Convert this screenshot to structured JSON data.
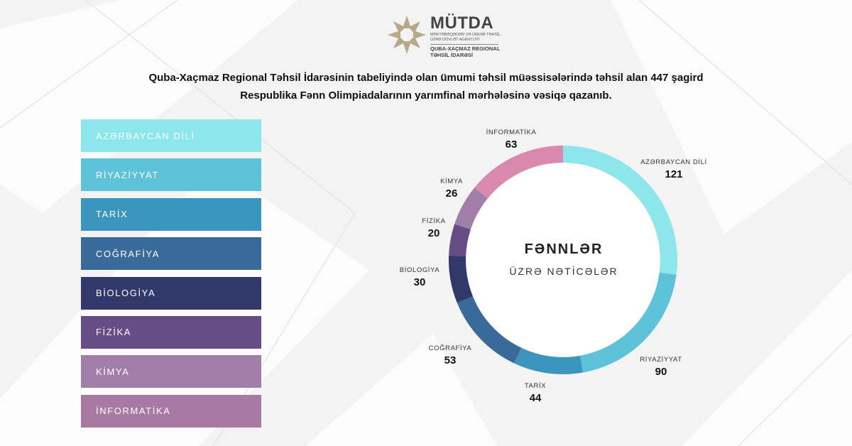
{
  "logo": {
    "name": "MÜTDA",
    "subtitle": "MƏKTƏBƏQƏDƏR VƏ ÜMUMİ TƏHSİL ÜZRƏ DÖVLƏT AGENTLİYİ",
    "region": "QUBA-XAÇMAZ REGIONAL TƏHSİL İDARƏSİ"
  },
  "headline": {
    "line1": "Quba-Xaçmaz Regional Təhsil İdarəsinin tabeliyində olan ümumi təhsil müəssisələrində təhsil alan 447 şagird",
    "line2": "Respublika Fənn Olimpiadalarının yarımfinal mərhələsinə vəsiqə qazanıb."
  },
  "center": {
    "title": "FƏNNLƏR",
    "subtitle": "ÜZRƏ NƏTİCƏLƏR"
  },
  "legend": [
    {
      "label": "AZƏRBAYCAN DİLİ",
      "color": "#8ce6ec"
    },
    {
      "label": "RİYAZİYYAT",
      "color": "#5ec3d9"
    },
    {
      "label": "TARİX",
      "color": "#3b95bd"
    },
    {
      "label": "COĞRAFİYA",
      "color": "#3a6a9a"
    },
    {
      "label": "BİOLOGİYA",
      "color": "#31386a"
    },
    {
      "label": "FİZİKA",
      "color": "#674d86"
    },
    {
      "label": "KİMYA",
      "color": "#a17ea8"
    },
    {
      "label": "İNFORMATİKA",
      "color": "#a87aa3"
    }
  ],
  "chart_data": {
    "type": "pie",
    "categories": [
      "AZƏRBAYCAN DİLİ",
      "RİYAZİYYAT",
      "TARİX",
      "COĞRAFİYA",
      "BİOLOGİYA",
      "FİZİKA",
      "KİMYA",
      "İNFORMATİKA"
    ],
    "values": [
      121,
      90,
      44,
      53,
      30,
      20,
      26,
      63
    ],
    "colors": [
      "#8ce6ec",
      "#5ec3d9",
      "#3b95bd",
      "#3a6a9a",
      "#31386a",
      "#674d86",
      "#a17ea8",
      "#d889ad"
    ],
    "donut": true,
    "start": "top",
    "direction": "clockwise"
  },
  "segment_labels": [
    {
      "name": "AZƏRBAYCAN DİLİ",
      "value": "121"
    },
    {
      "name": "RİYAZİYYAT",
      "value": "90"
    },
    {
      "name": "TARİX",
      "value": "44"
    },
    {
      "name": "COĞRAFİYA",
      "value": "53"
    },
    {
      "name": "BİOLOGİYA",
      "value": "30"
    },
    {
      "name": "FİZİKA",
      "value": "20"
    },
    {
      "name": "KİMYA",
      "value": "26"
    },
    {
      "name": "İNFORMATİKA",
      "value": "63"
    }
  ]
}
